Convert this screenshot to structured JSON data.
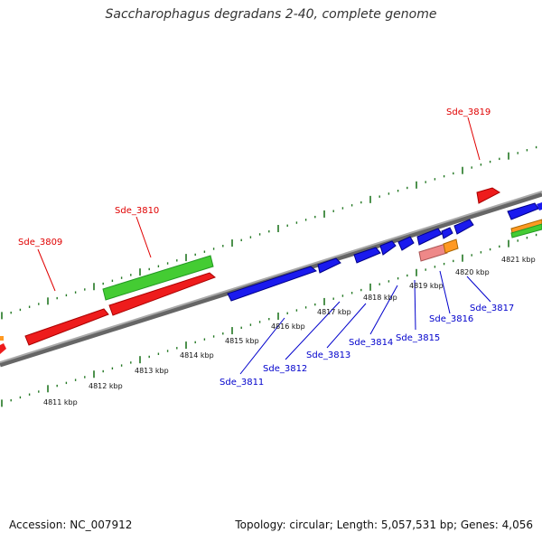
{
  "title": "Saccharophagus degradans 2-40, complete genome",
  "footer": {
    "accession": "Accession: NC_007912",
    "summary": "Topology: circular; Length: 5,057,531 bp; Genes: 4,056"
  },
  "colors": {
    "forward_red": "#ee1c1c",
    "forward_green": "#44cc33",
    "reverse_blue": "#1a1aee",
    "pink": "#ee8888",
    "orange": "#ff9922",
    "backbone": "#888888",
    "tick_green": "#227722"
  },
  "gene_labels_top": [
    "Sde_3809",
    "Sde_3810",
    "Sde_3819"
  ],
  "gene_labels_bottom": [
    "Sde_3811",
    "Sde_3812",
    "Sde_3813",
    "Sde_3814",
    "Sde_3815",
    "Sde_3816",
    "Sde_3817"
  ],
  "kbp_labels": [
    "4811 kbp",
    "4812 kbp",
    "4813 kbp",
    "4814 kbp",
    "4815 kbp",
    "4816 kbp",
    "4817 kbp",
    "4818 kbp",
    "4819 kbp",
    "4820 kbp",
    "4821 kbp"
  ]
}
